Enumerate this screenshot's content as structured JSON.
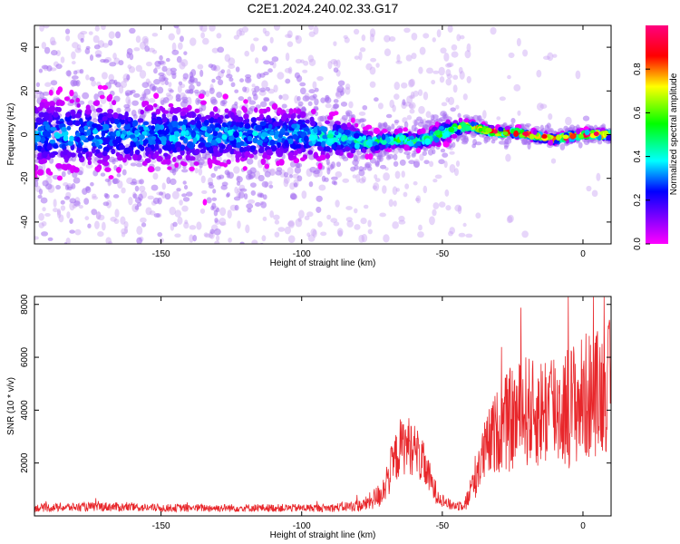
{
  "title": "C2E1.2024.240.02.33.G17",
  "chart_data": [
    {
      "type": "heatmap",
      "xlabel": "Height of straight line (km)",
      "ylabel": "Frequency (Hz)",
      "xlim": [
        -195,
        10
      ],
      "ylim": [
        -50,
        50
      ],
      "xticks": [
        -150,
        -100,
        -50,
        0
      ],
      "yticks": [
        -40,
        -20,
        0,
        20,
        40
      ],
      "colorbar": {
        "label": "Normalized spectral amplitude",
        "range": [
          0,
          1
        ],
        "ticks": [
          0.0,
          0.2,
          0.4,
          0.6,
          0.8
        ],
        "colormap": [
          "#ff00ff",
          "#7f00ff",
          "#0000ff",
          "#00ffff",
          "#00ff00",
          "#ffff00",
          "#ff0000",
          "#ff007f"
        ]
      },
      "ridge": {
        "x": [
          -195,
          -180,
          -160,
          -140,
          -120,
          -100,
          -85,
          -75,
          -70,
          -65,
          -60,
          -55,
          -50,
          -45,
          -40,
          -35,
          -30,
          -25,
          -20,
          -15,
          -10,
          -5,
          0,
          5,
          10
        ],
        "center": [
          0,
          0,
          0,
          0,
          0,
          0,
          -2,
          -4,
          -3,
          -2,
          -3,
          -2,
          1,
          3,
          4,
          2,
          1,
          1,
          0,
          -1,
          -2,
          -1,
          0,
          0,
          0
        ],
        "spread": [
          14,
          14,
          13,
          12,
          11,
          10,
          7,
          4,
          3,
          3,
          3,
          3,
          4,
          3,
          2,
          1.5,
          1.5,
          1.5,
          1.5,
          1.5,
          1.5,
          1.5,
          1.5,
          1.5,
          1.5
        ],
        "peak": [
          0.3,
          0.3,
          0.3,
          0.32,
          0.32,
          0.33,
          0.38,
          0.42,
          0.45,
          0.5,
          0.5,
          0.45,
          0.5,
          0.55,
          0.7,
          0.8,
          0.85,
          0.85,
          0.85,
          0.85,
          0.85,
          0.85,
          0.85,
          0.85,
          0.85
        ]
      }
    },
    {
      "type": "line",
      "xlabel": "Height of straight line (km)",
      "ylabel": "SNR (10 * v/v)",
      "xlim": [
        -195,
        10
      ],
      "ylim": [
        0,
        8300
      ],
      "xticks": [
        -150,
        -100,
        -50,
        0
      ],
      "yticks": [
        2000,
        4000,
        6000,
        8000
      ],
      "color": "#e8262a",
      "series": [
        {
          "x": [
            -195,
            -170,
            -150,
            -130,
            -110,
            -90,
            -78,
            -72,
            -68,
            -65,
            -62,
            -59,
            -56,
            -53,
            -50,
            -47,
            -44,
            -41,
            -38,
            -35,
            -32,
            -29,
            -26,
            -23,
            -20,
            -17,
            -14,
            -11,
            -8,
            -5,
            -2,
            1,
            4,
            7,
            10
          ],
          "envelope": [
            300,
            350,
            300,
            300,
            300,
            300,
            400,
            800,
            1800,
            2600,
            2700,
            2400,
            1800,
            1000,
            600,
            400,
            400,
            600,
            1600,
            2400,
            3000,
            3400,
            3600,
            3800,
            4000,
            3800,
            4000,
            4200,
            4000,
            4200,
            4300,
            4500,
            4600,
            4800,
            5000
          ],
          "noise_amp": [
            150,
            180,
            150,
            150,
            150,
            150,
            250,
            500,
            900,
            1100,
            1100,
            1000,
            800,
            500,
            250,
            200,
            200,
            400,
            900,
            1200,
            1500,
            1700,
            2000,
            2000,
            2200,
            2000,
            2200,
            2400,
            2200,
            2400,
            2400,
            2500,
            2400,
            2500,
            2500
          ]
        }
      ]
    }
  ]
}
